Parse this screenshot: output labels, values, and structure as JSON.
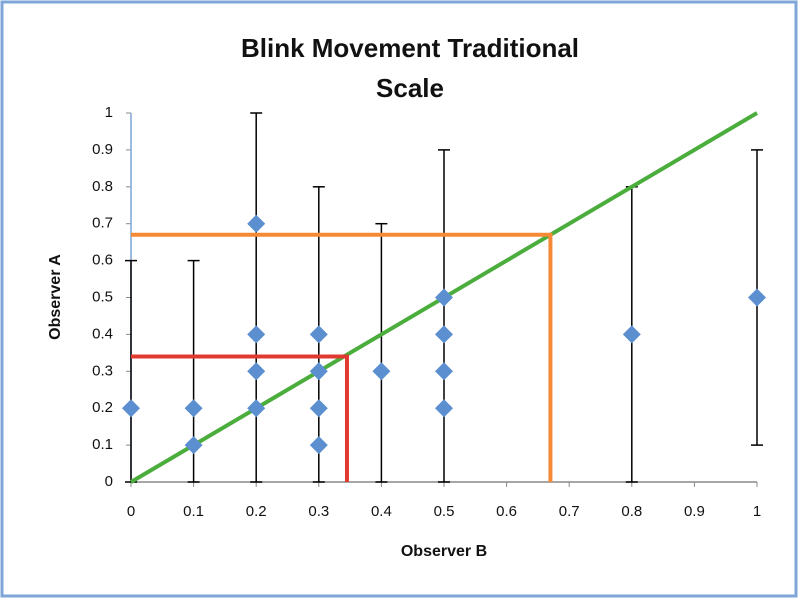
{
  "chart_data": {
    "type": "scatter",
    "title": [
      "Blink Movement Traditional",
      "Scale"
    ],
    "x_label": "Observer B",
    "y_label": "Observer A",
    "xlim": [
      0,
      1
    ],
    "ylim": [
      0,
      1
    ],
    "xticks": [
      0,
      0.1,
      0.2,
      0.3,
      0.4,
      0.5,
      0.6,
      0.7,
      0.8,
      0.9,
      1
    ],
    "yticks": [
      0,
      0.1,
      0.2,
      0.3,
      0.4,
      0.5,
      0.6,
      0.7,
      0.8,
      0.9,
      1
    ],
    "series": [
      {
        "color": "#5b8fd0",
        "x": [
          0,
          0.1,
          0.1,
          0.2,
          0.2,
          0.2,
          0.2,
          0.3,
          0.3,
          0.3,
          0.3,
          0.4,
          0.5,
          0.5,
          0.5,
          0.5,
          0.8,
          1
        ],
        "values": [
          0.2,
          0.2,
          0.1,
          0.7,
          0.4,
          0.3,
          0.2,
          0.4,
          0.3,
          0.2,
          0.1,
          0.3,
          0.5,
          0.4,
          0.3,
          0.2,
          0.4,
          0.5
        ]
      }
    ],
    "error_bars": {
      "color": "#000000",
      "x": [
        0,
        0.1,
        0.2,
        0.3,
        0.4,
        0.5,
        0.8,
        1
      ],
      "low": [
        0,
        0,
        0,
        0,
        0,
        0,
        0,
        0.1
      ],
      "high": [
        0.6,
        0.6,
        1,
        0.8,
        0.7,
        0.9,
        0.8,
        0.9
      ]
    },
    "lines": [
      {
        "color": "#4aad3c",
        "x": [
          0,
          1
        ],
        "y": [
          0,
          1
        ]
      },
      {
        "color": "#f58a36",
        "x": [
          0,
          0.67,
          0.67
        ],
        "y": [
          0.67,
          0.67,
          0
        ]
      },
      {
        "color": "#e03a30",
        "x": [
          0,
          0.345,
          0.345
        ],
        "y": [
          0.34,
          0.34,
          0
        ]
      }
    ]
  }
}
